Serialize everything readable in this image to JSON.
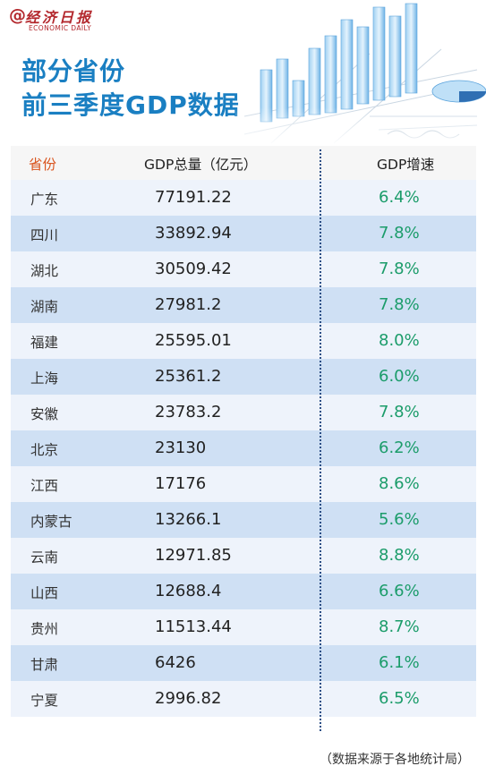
{
  "brand": {
    "at": "@",
    "name_cn": "经济日报",
    "name_en": "ECONOMIC DAILY"
  },
  "title": {
    "line1": "部分省份",
    "line2": "前三季度GDP数据"
  },
  "table": {
    "headers": {
      "province": "省份",
      "gdp": "GDP总量（亿元）",
      "growth": "GDP增速"
    },
    "rows": [
      {
        "province": "广东",
        "gdp": "77191.22",
        "growth": "6.4%"
      },
      {
        "province": "四川",
        "gdp": "33892.94",
        "growth": "7.8%"
      },
      {
        "province": "湖北",
        "gdp": "30509.42",
        "growth": "7.8%"
      },
      {
        "province": "湖南",
        "gdp": "27981.2",
        "growth": "7.8%"
      },
      {
        "province": "福建",
        "gdp": "25595.01",
        "growth": "8.0%"
      },
      {
        "province": "上海",
        "gdp": "25361.2",
        "growth": "6.0%"
      },
      {
        "province": "安徽",
        "gdp": "23783.2",
        "growth": "7.8%"
      },
      {
        "province": "北京",
        "gdp": "23130",
        "growth": "6.2%"
      },
      {
        "province": "江西",
        "gdp": "17176",
        "growth": "8.6%"
      },
      {
        "province": "内蒙古",
        "gdp": "13266.1",
        "growth": "5.6%"
      },
      {
        "province": "云南",
        "gdp": "12971.85",
        "growth": "8.8%"
      },
      {
        "province": "山西",
        "gdp": "12688.4",
        "growth": "6.6%"
      },
      {
        "province": "贵州",
        "gdp": "11513.44",
        "growth": "8.7%"
      },
      {
        "province": "甘肃",
        "gdp": "6426",
        "growth": "6.1%"
      },
      {
        "province": "宁夏",
        "gdp": "2996.82",
        "growth": "6.5%"
      }
    ]
  },
  "footer": {
    "source": "（数据来源于各地统计局）"
  },
  "colors": {
    "title": "#1a7fc2",
    "brand": "#b3282d",
    "province_header": "#d9541e",
    "growth": "#1b9c6a",
    "row_light": "#eef3fb",
    "row_dark": "#cfe0f4"
  },
  "icons": {
    "decoration": "bar-chart-illustration"
  }
}
